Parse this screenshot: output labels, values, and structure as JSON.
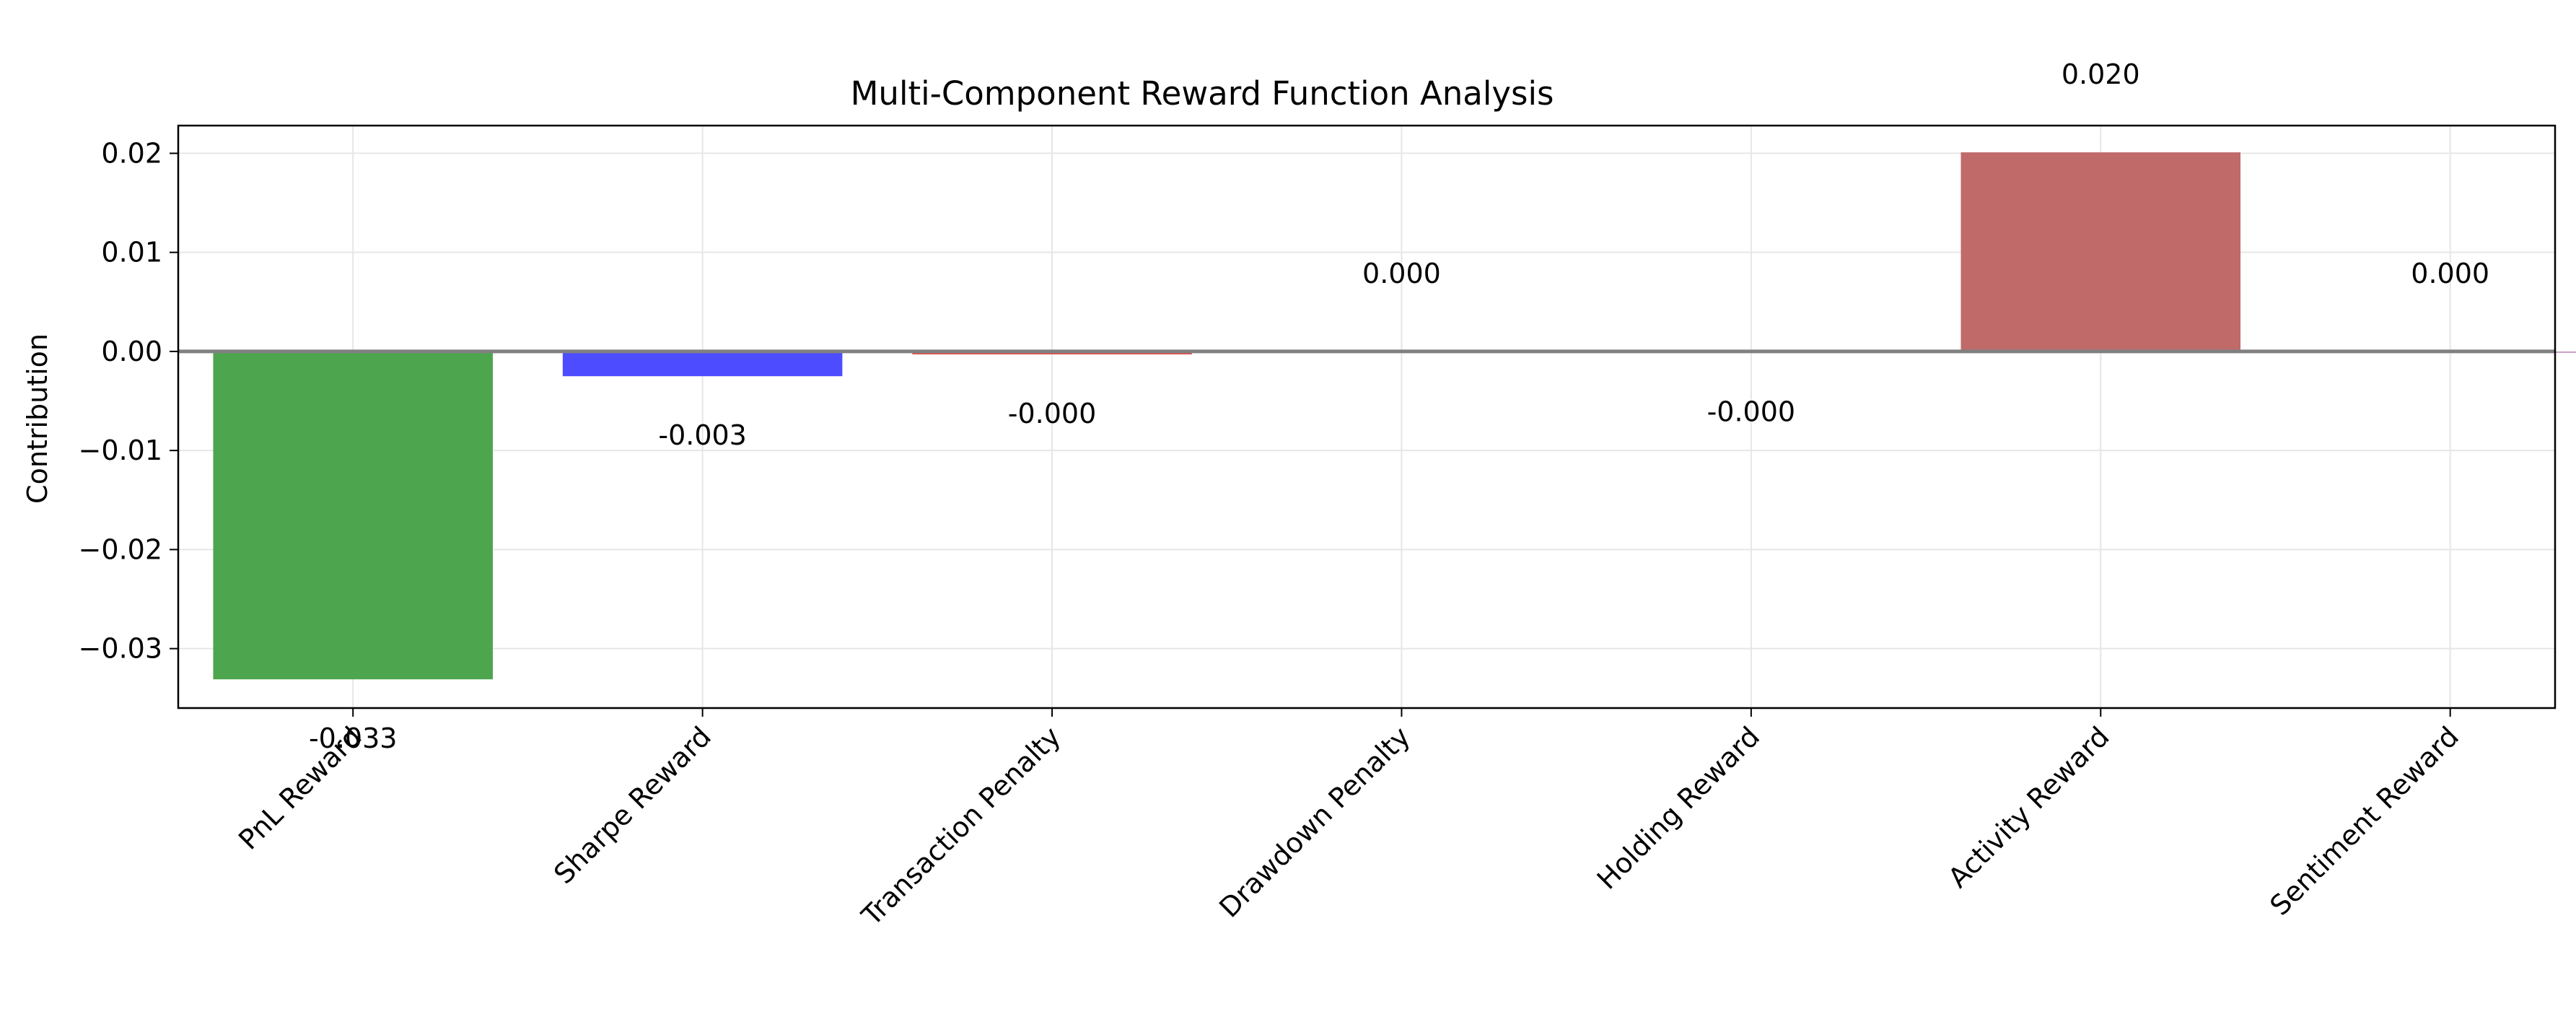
{
  "chart_data": {
    "type": "bar",
    "title": "Multi-Component Reward Function Analysis",
    "xlabel": "",
    "ylabel": "Contribution",
    "categories": [
      "PnL Reward",
      "Sharpe Reward",
      "Transaction Penalty",
      "Drawdown Penalty",
      "Holding Reward",
      "Activity Reward",
      "Sentiment Reward"
    ],
    "values": [
      -0.0331,
      -0.0025,
      -0.0003,
      0.0,
      -0.0001,
      0.0201,
      0.0
    ],
    "value_labels": [
      "-0.033",
      "-0.003",
      "-0.000",
      "0.000",
      "-0.000",
      "0.020",
      "0.000"
    ],
    "colors": [
      "#4da64d",
      "#4d4dff",
      "#e05050",
      "#b0b0b0",
      "#9a5bb0",
      "#c06a6a",
      "#c8a0c8"
    ],
    "ylim": [
      -0.036,
      0.0228
    ],
    "yticks": [
      0.02,
      0.01,
      0.0,
      -0.01,
      -0.02,
      -0.03
    ],
    "ytick_labels": [
      "0.02",
      "0.01",
      "0.00",
      "−0.01",
      "−0.02",
      "−0.03"
    ],
    "grid": true,
    "zero_line_color": "#808080"
  }
}
